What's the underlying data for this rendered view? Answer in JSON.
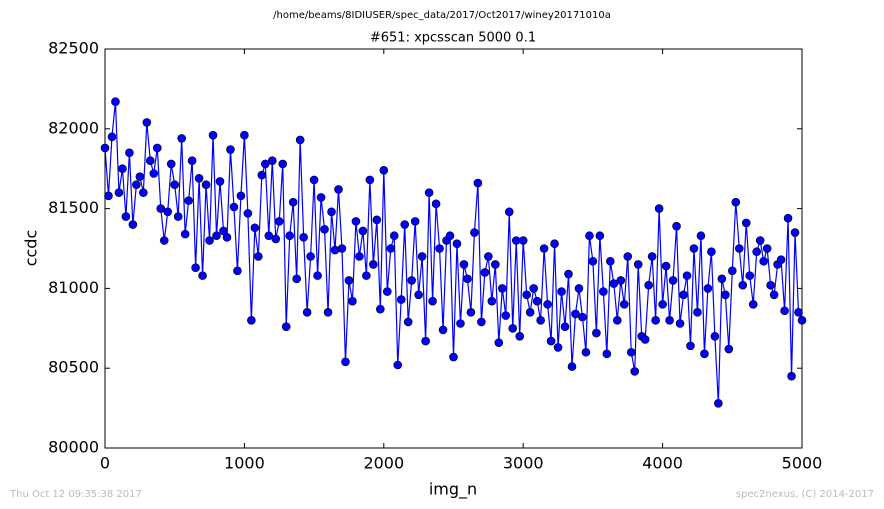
{
  "chart_data": {
    "type": "line",
    "suptitle": "/home/beams/8IDIUSER/spec_data/2017/Oct2017/winey20171010a",
    "title": "#651: xpcsscan 5000 0.1",
    "xlabel": "img_n",
    "ylabel": "ccdc",
    "footer_left": "Thu Oct 12 09:35:38 2017",
    "footer_right": "spec2nexus, (C) 2014-2017",
    "xlim": [
      0,
      5000
    ],
    "xticks": [
      0,
      1000,
      2000,
      3000,
      4000,
      5000
    ],
    "ylim": [
      80000,
      82500
    ],
    "yticks": [
      80000,
      80500,
      81000,
      81500,
      82000,
      82500
    ],
    "grid": false,
    "series": [
      {
        "name": "ccdc",
        "color": "#0000ff",
        "x": [
          0,
          25,
          50,
          75,
          100,
          125,
          150,
          175,
          200,
          225,
          250,
          275,
          300,
          325,
          350,
          375,
          400,
          425,
          450,
          475,
          500,
          525,
          550,
          575,
          600,
          625,
          650,
          675,
          700,
          725,
          750,
          775,
          800,
          825,
          850,
          875,
          900,
          925,
          950,
          975,
          1000,
          1025,
          1050,
          1075,
          1100,
          1125,
          1150,
          1175,
          1200,
          1225,
          1250,
          1275,
          1300,
          1325,
          1350,
          1375,
          1400,
          1425,
          1450,
          1475,
          1500,
          1525,
          1550,
          1575,
          1600,
          1625,
          1650,
          1675,
          1700,
          1725,
          1750,
          1775,
          1800,
          1825,
          1850,
          1875,
          1900,
          1925,
          1950,
          1975,
          2000,
          2025,
          2050,
          2075,
          2100,
          2125,
          2150,
          2175,
          2200,
          2225,
          2250,
          2275,
          2300,
          2325,
          2350,
          2375,
          2400,
          2425,
          2450,
          2475,
          2500,
          2525,
          2550,
          2575,
          2600,
          2625,
          2650,
          2675,
          2700,
          2725,
          2750,
          2775,
          2800,
          2825,
          2850,
          2875,
          2900,
          2925,
          2950,
          2975,
          3000,
          3025,
          3050,
          3075,
          3100,
          3125,
          3150,
          3175,
          3200,
          3225,
          3250,
          3275,
          3300,
          3325,
          3350,
          3375,
          3400,
          3425,
          3450,
          3475,
          3500,
          3525,
          3550,
          3575,
          3600,
          3625,
          3650,
          3675,
          3700,
          3725,
          3750,
          3775,
          3800,
          3825,
          3850,
          3875,
          3900,
          3925,
          3950,
          3975,
          4000,
          4025,
          4050,
          4075,
          4100,
          4125,
          4150,
          4175,
          4200,
          4225,
          4250,
          4275,
          4300,
          4325,
          4350,
          4375,
          4400,
          4425,
          4450,
          4475,
          4500,
          4525,
          4550,
          4575,
          4600,
          4625,
          4650,
          4675,
          4700,
          4725,
          4750,
          4775,
          4800,
          4825,
          4850,
          4875,
          4900,
          4925,
          4950,
          4975,
          5000
        ],
        "values": [
          81880,
          81580,
          81950,
          82170,
          81600,
          81750,
          81450,
          81850,
          81400,
          81650,
          81700,
          81600,
          82040,
          81800,
          81720,
          81880,
          81500,
          81300,
          81480,
          81780,
          81650,
          81450,
          81940,
          81340,
          81550,
          81800,
          81130,
          81690,
          81080,
          81650,
          81300,
          81960,
          81330,
          81670,
          81360,
          81320,
          81870,
          81510,
          81110,
          81580,
          81960,
          81470,
          80800,
          81380,
          81200,
          81710,
          81780,
          81330,
          81800,
          81310,
          81420,
          81780,
          80760,
          81330,
          81540,
          81060,
          81930,
          81320,
          80850,
          81200,
          81680,
          81080,
          81570,
          81370,
          80850,
          81480,
          81240,
          81620,
          81250,
          80540,
          81050,
          80920,
          81420,
          81200,
          81360,
          81080,
          81680,
          81150,
          81430,
          80870,
          81740,
          80980,
          81250,
          81330,
          80520,
          80930,
          81400,
          80790,
          81050,
          81420,
          80960,
          81200,
          80670,
          81600,
          80920,
          81530,
          81250,
          80740,
          81300,
          81330,
          80570,
          81280,
          80780,
          81150,
          81060,
          80850,
          81350,
          81660,
          80790,
          81100,
          81200,
          80920,
          81150,
          80660,
          81000,
          80830,
          81480,
          80750,
          81300,
          80700,
          81300,
          80960,
          80850,
          81000,
          80920,
          80800,
          81250,
          80900,
          80670,
          81280,
          80630,
          80980,
          80760,
          81090,
          80510,
          80840,
          81000,
          80820,
          80600,
          81330,
          81170,
          80720,
          81330,
          80980,
          80590,
          81170,
          81030,
          80800,
          81050,
          80900,
          81200,
          80600,
          80480,
          81150,
          80700,
          80680,
          81020,
          81200,
          80800,
          81500,
          80900,
          81140,
          80800,
          81050,
          81390,
          80780,
          80960,
          81080,
          80640,
          81250,
          80850,
          81330,
          80590,
          81000,
          81230,
          80700,
          80280,
          81060,
          80960,
          80620,
          81110,
          81540,
          81250,
          81020,
          81410,
          81080,
          80900,
          81230,
          81300,
          81170,
          81250,
          81020,
          80960,
          81150,
          81180,
          80860,
          81440,
          80450,
          81350,
          80850,
          80800
        ]
      }
    ]
  }
}
